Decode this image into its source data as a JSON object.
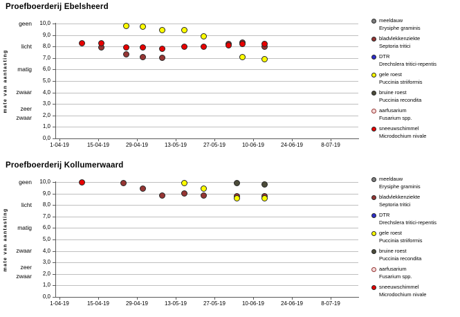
{
  "colors": {
    "gridline": "#BFBFBF",
    "axis": "#595959",
    "marker_outline": "#262626",
    "text": "#000000"
  },
  "chart_data": [
    {
      "type": "scatter",
      "title": "Proefboerderij Ebelsheerd",
      "ylabel": "mate van aantasting",
      "xlabel": "",
      "ylim": [
        0,
        10
      ],
      "grid": true,
      "legend_position": "right",
      "y_tick_labels": [
        "0,0",
        "1,0",
        "2,0",
        "3,0",
        "4,0",
        "5,0",
        "6,0",
        "7,0",
        "8,0",
        "9,0",
        "10,0"
      ],
      "severity_labels": [
        {
          "label": "geen",
          "value": 10
        },
        {
          "label": "licht",
          "value": 8
        },
        {
          "label": "matig",
          "value": 6
        },
        {
          "label": "zwaar",
          "value": 4
        },
        {
          "label": "zeer\nzwaar",
          "value": 2.15
        }
      ],
      "x_ticks": [
        {
          "label": "1-04-19",
          "day": 0
        },
        {
          "label": "15-04-19",
          "day": 14
        },
        {
          "label": "29-04-19",
          "day": 28
        },
        {
          "label": "13-05-19",
          "day": 42
        },
        {
          "label": "27-05-19",
          "day": 56
        },
        {
          "label": "10-06-19",
          "day": 70
        },
        {
          "label": "24-06-19",
          "day": 84
        },
        {
          "label": "8-07-19",
          "day": 98
        }
      ],
      "series": [
        {
          "name": "meeldauw",
          "latin": "Erysiphe graminis",
          "color": "#7F7F7F",
          "outline": "#262626",
          "points": []
        },
        {
          "name": "bladvlekkenziekte",
          "latin": "Septoria tritici",
          "color": "#963634",
          "outline": "#262626",
          "points": [
            {
              "day": 15,
              "value": 7.9
            },
            {
              "day": 24,
              "value": 7.3
            },
            {
              "day": 30,
              "value": 7.1
            },
            {
              "day": 37,
              "value": 7.0
            },
            {
              "day": 61,
              "value": 8.2
            },
            {
              "day": 66,
              "value": 8.35
            },
            {
              "day": 74,
              "value": 8.0
            }
          ]
        },
        {
          "name": "DTR",
          "latin": "Drechslera tritici-repentis",
          "color": "#2E2ECC",
          "outline": "#262626",
          "points": []
        },
        {
          "name": "gele roest",
          "latin": "Puccinia striiformis",
          "color": "#FFFF00",
          "outline": "#262626",
          "points": [
            {
              "day": 24,
              "value": 9.8
            },
            {
              "day": 30,
              "value": 9.7
            },
            {
              "day": 37,
              "value": 9.4
            },
            {
              "day": 45,
              "value": 9.4
            },
            {
              "day": 52,
              "value": 8.9
            },
            {
              "day": 66,
              "value": 7.1
            },
            {
              "day": 74,
              "value": 6.9
            }
          ]
        },
        {
          "name": "bruine roest",
          "latin": "Puccinia recondita",
          "color": "#4C4C3A",
          "outline": "#262626",
          "points": []
        },
        {
          "name": "aarfusarium",
          "latin": "Fusarium spp.",
          "color": "#F4DADA",
          "outline": "#963634",
          "points": []
        },
        {
          "name": "sneeuwschimmel",
          "latin": "Microdochium nivale",
          "color": "#E80000",
          "outline": "#262626",
          "points": [
            {
              "day": 8,
              "value": 8.3
            },
            {
              "day": 15,
              "value": 8.3
            },
            {
              "day": 24,
              "value": 7.9
            },
            {
              "day": 30,
              "value": 7.9
            },
            {
              "day": 37,
              "value": 7.8
            },
            {
              "day": 45,
              "value": 8.0
            },
            {
              "day": 52,
              "value": 8.0
            },
            {
              "day": 61,
              "value": 8.1
            },
            {
              "day": 66,
              "value": 8.2
            },
            {
              "day": 74,
              "value": 8.25
            }
          ]
        }
      ]
    },
    {
      "type": "scatter",
      "title": "Proefboerderij Kollumerwaard",
      "ylabel": "mate van aantasting",
      "xlabel": "",
      "ylim": [
        0,
        10
      ],
      "grid": true,
      "legend_position": "right",
      "y_tick_labels": [
        "0,0",
        "1,0",
        "2,0",
        "3,0",
        "4,0",
        "5,0",
        "6,0",
        "7,0",
        "8,0",
        "9,0",
        "10,0"
      ],
      "severity_labels": [
        {
          "label": "geen",
          "value": 10
        },
        {
          "label": "licht",
          "value": 8
        },
        {
          "label": "matig",
          "value": 6
        },
        {
          "label": "zwaar",
          "value": 4
        },
        {
          "label": "zeer\nzwaar",
          "value": 2.15
        }
      ],
      "x_ticks": [
        {
          "label": "1-04-19",
          "day": 0
        },
        {
          "label": "15-04-19",
          "day": 14
        },
        {
          "label": "29-04-19",
          "day": 28
        },
        {
          "label": "13-05-19",
          "day": 42
        },
        {
          "label": "27-05-19",
          "day": 56
        },
        {
          "label": "10-06-19",
          "day": 70
        },
        {
          "label": "24-06-19",
          "day": 84
        },
        {
          "label": "8-07-19",
          "day": 98
        }
      ],
      "series": [
        {
          "name": "meeldauw",
          "latin": "Erysiphe graminis",
          "color": "#7F7F7F",
          "outline": "#262626",
          "points": []
        },
        {
          "name": "bladvlekkenziekte",
          "latin": "Septoria tritici",
          "color": "#963634",
          "outline": "#262626",
          "points": [
            {
              "day": 23,
              "value": 9.9
            },
            {
              "day": 30,
              "value": 9.4
            },
            {
              "day": 37,
              "value": 8.8
            },
            {
              "day": 45,
              "value": 9.0
            },
            {
              "day": 52,
              "value": 8.8
            },
            {
              "day": 64,
              "value": 8.75
            },
            {
              "day": 74,
              "value": 8.75
            }
          ]
        },
        {
          "name": "DTR",
          "latin": "Drechslera tritici-repentis",
          "color": "#2E2ECC",
          "outline": "#262626",
          "points": []
        },
        {
          "name": "gele roest",
          "latin": "Puccinia striiformis",
          "color": "#FFFF00",
          "outline": "#262626",
          "points": [
            {
              "day": 45,
              "value": 9.9
            },
            {
              "day": 52,
              "value": 9.4
            },
            {
              "day": 64,
              "value": 8.6
            },
            {
              "day": 74,
              "value": 8.6
            }
          ]
        },
        {
          "name": "bruine roest",
          "latin": "Puccinia recondita",
          "color": "#4C4C3A",
          "outline": "#262626",
          "points": [
            {
              "day": 64,
              "value": 9.9
            },
            {
              "day": 74,
              "value": 9.8
            }
          ]
        },
        {
          "name": "aarfusarium",
          "latin": "Fusarium spp.",
          "color": "#F4DADA",
          "outline": "#963634",
          "points": []
        },
        {
          "name": "sneeuwschimmel",
          "latin": "Microdochium nivale",
          "color": "#E80000",
          "outline": "#262626",
          "points": [
            {
              "day": 8,
              "value": 10.0
            }
          ]
        }
      ]
    }
  ]
}
